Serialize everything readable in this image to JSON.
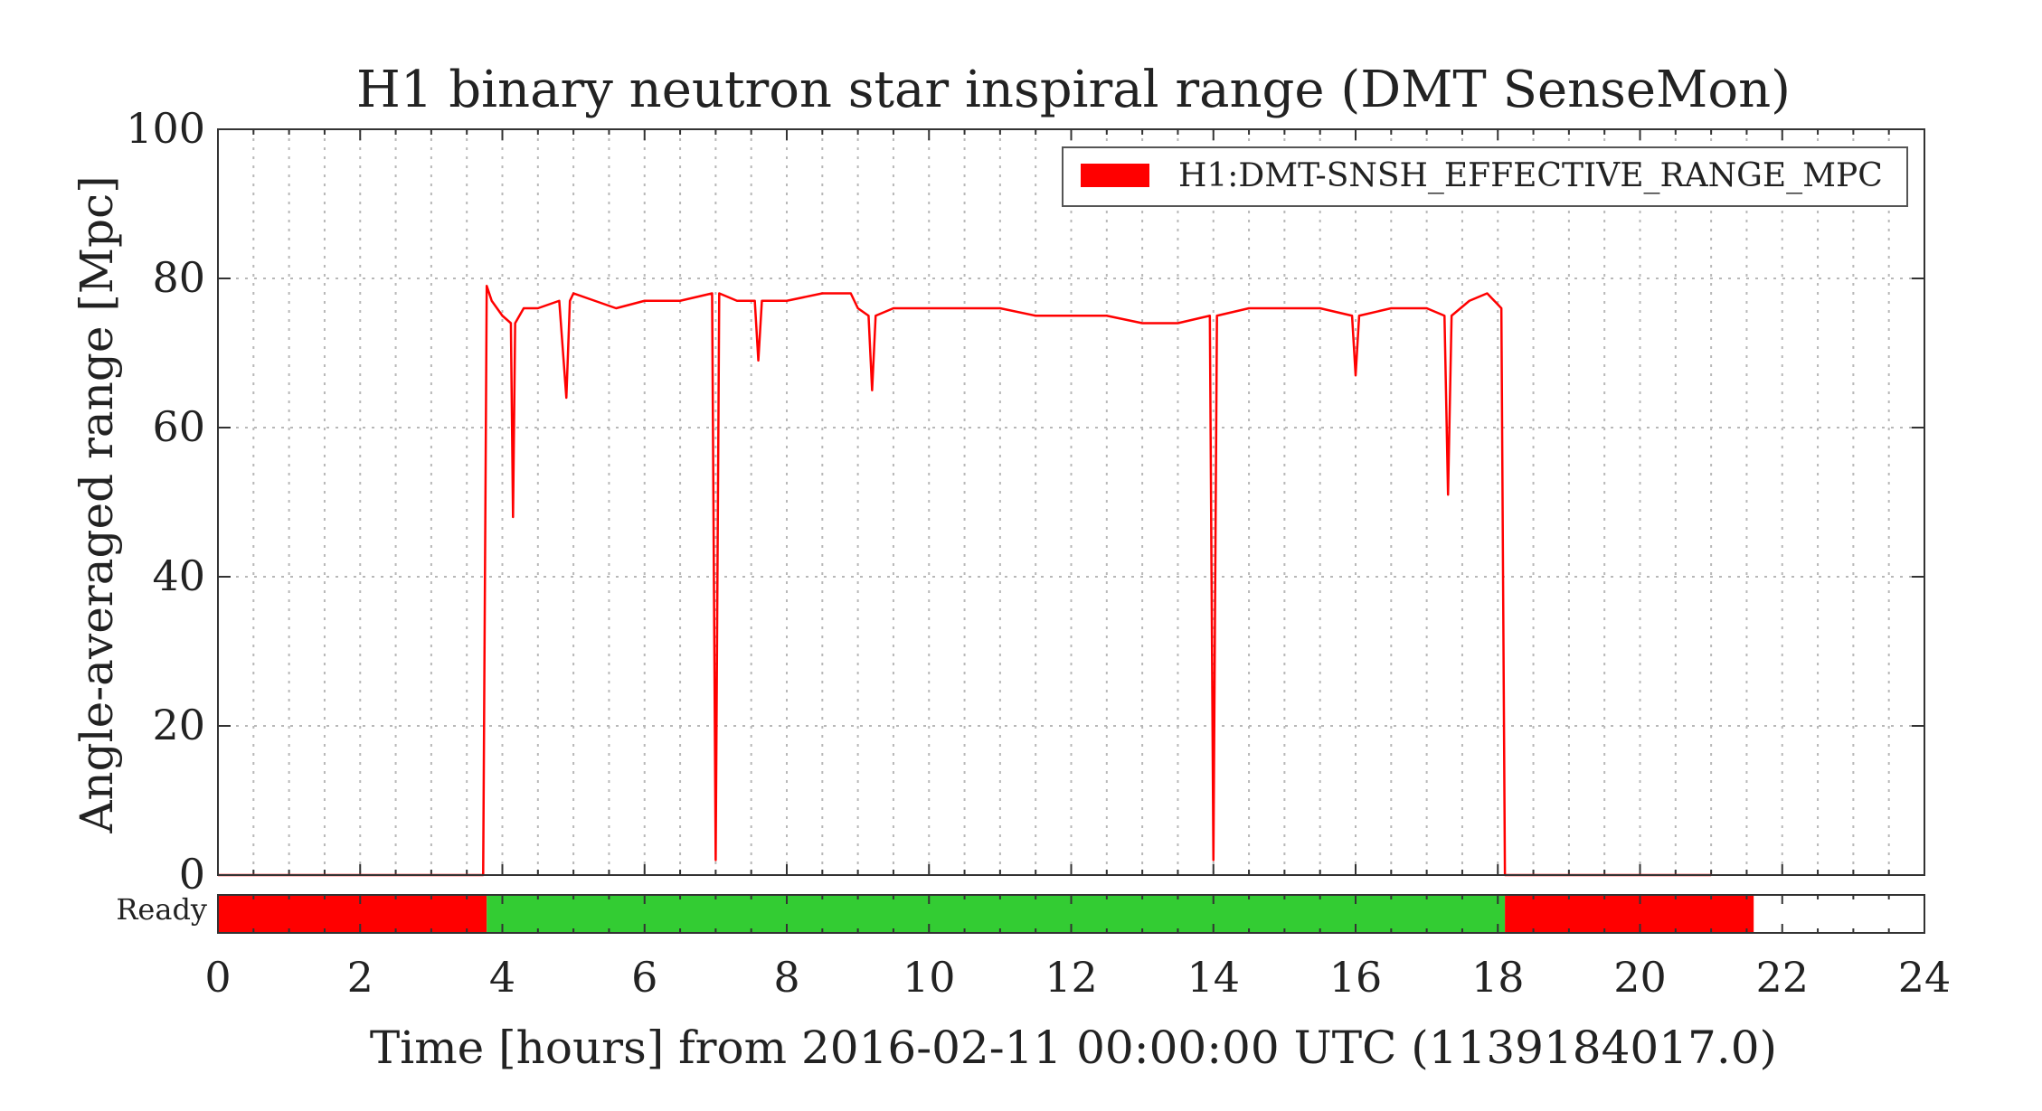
{
  "chart_data": {
    "type": "line",
    "title": "H1 binary neutron star inspiral range (DMT SenseMon)",
    "xlabel": "Time [hours] from 2016-02-11 00:00:00 UTC (1139184017.0)",
    "ylabel": "Angle-averaged range [Mpc]",
    "xlim": [
      0,
      24
    ],
    "ylim": [
      0,
      100
    ],
    "x_ticks": [
      "0",
      "2",
      "4",
      "6",
      "8",
      "10",
      "12",
      "14",
      "16",
      "18",
      "20",
      "22",
      "24"
    ],
    "y_ticks": [
      "0",
      "20",
      "40",
      "60",
      "80",
      "100"
    ],
    "grid": true,
    "legend_position": "top-right",
    "series": [
      {
        "name": "H1:DMT-SNSH_EFFECTIVE_RANGE_MPC",
        "color": "#ff0000",
        "x": [
          0,
          3.73,
          3.78,
          3.85,
          4.0,
          4.12,
          4.15,
          4.18,
          4.3,
          4.5,
          4.8,
          4.9,
          4.95,
          5.0,
          5.3,
          5.6,
          6.0,
          6.5,
          6.95,
          7.0,
          7.05,
          7.3,
          7.55,
          7.6,
          7.65,
          8.0,
          8.5,
          8.9,
          9.0,
          9.15,
          9.2,
          9.25,
          9.5,
          10.0,
          10.5,
          11.0,
          11.5,
          12.0,
          12.5,
          13.0,
          13.5,
          13.95,
          14.0,
          14.05,
          14.5,
          15.0,
          15.5,
          15.95,
          16.0,
          16.05,
          16.5,
          17.0,
          17.25,
          17.3,
          17.35,
          17.6,
          17.85,
          18.05,
          18.1,
          18.15,
          21.0
        ],
        "y": [
          0,
          0,
          79,
          77,
          75,
          74,
          48,
          74,
          76,
          76,
          77,
          64,
          77,
          78,
          77,
          76,
          77,
          77,
          78,
          2,
          78,
          77,
          77,
          69,
          77,
          77,
          78,
          78,
          76,
          75,
          65,
          75,
          76,
          76,
          76,
          76,
          75,
          75,
          75,
          74,
          74,
          75,
          2,
          75,
          76,
          76,
          76,
          75,
          67,
          75,
          76,
          76,
          75,
          51,
          75,
          77,
          78,
          76,
          0,
          0,
          0
        ]
      }
    ],
    "state_bar": {
      "label": "Ready",
      "segments": [
        {
          "start": 0,
          "end": 3.78,
          "color": "#ff0000"
        },
        {
          "start": 3.78,
          "end": 18.1,
          "color": "#33cc33"
        },
        {
          "start": 18.1,
          "end": 21.6,
          "color": "#ff0000"
        },
        {
          "start": 21.6,
          "end": 24,
          "color": "#ffffff"
        }
      ]
    }
  }
}
